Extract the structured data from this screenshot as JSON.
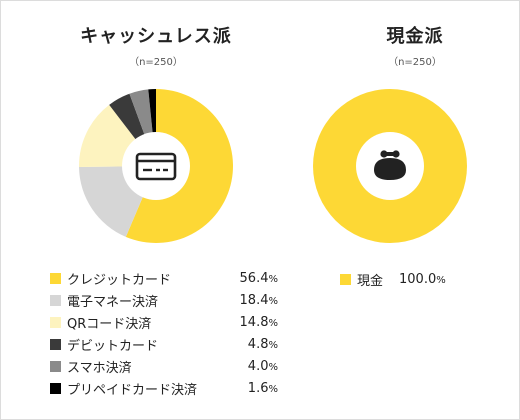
{
  "colors": {
    "credit": "#fdd835",
    "emoney": "#d6d6d6",
    "qr": "#fdf3bf",
    "debit": "#3a3a3a",
    "smartphone": "#8a8a8a",
    "prepaid": "#000000",
    "cash": "#fdd835"
  },
  "chart_data": [
    {
      "type": "pie",
      "title": "キャッシュレス派",
      "subtitle": "（n=250）",
      "center_icon": "credit-card-icon",
      "unit": "%",
      "slices": [
        {
          "label": "クレジットカード",
          "value": 56.4,
          "display": "56.4",
          "color": "#fdd835"
        },
        {
          "label": "電子マネー決済",
          "value": 18.4,
          "display": "18.4",
          "color": "#d6d6d6"
        },
        {
          "label": "QRコード決済",
          "value": 14.8,
          "display": "14.8",
          "color": "#fdf3bf"
        },
        {
          "label": "デビットカード",
          "value": 4.8,
          "display": "4.8",
          "color": "#3a3a3a"
        },
        {
          "label": "スマホ決済",
          "value": 4.0,
          "display": "4.0",
          "color": "#8a8a8a"
        },
        {
          "label": "プリペイドカード決済",
          "value": 1.6,
          "display": "1.6",
          "color": "#000000"
        }
      ]
    },
    {
      "type": "pie",
      "title": "現金派",
      "subtitle": "（n=250）",
      "center_icon": "coin-purse-icon",
      "unit": "%",
      "slices": [
        {
          "label": "現金",
          "value": 100.0,
          "display": "100.0",
          "color": "#fdd835"
        }
      ]
    }
  ]
}
